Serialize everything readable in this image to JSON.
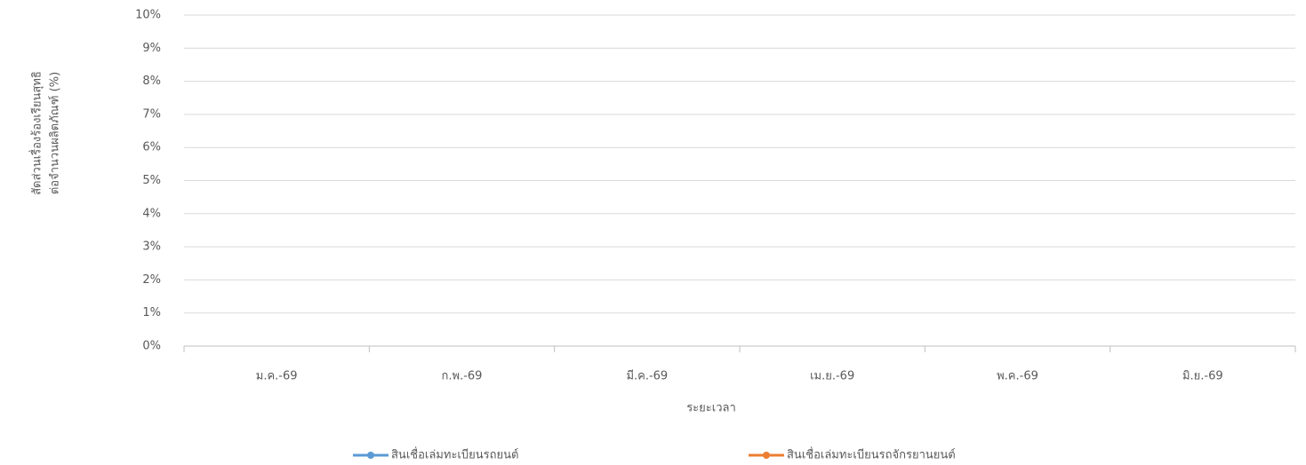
{
  "chart_data": {
    "type": "line",
    "y_label": [
      "สัดส่วนเรื่องร้องเรียนสุทธิ",
      "ต่อจำนวนผลิตภัณฑ์ (%)"
    ],
    "x_label": "ระยะเวลา",
    "categories": [
      "ม.ค.-69",
      "ก.พ.-69",
      "มี.ค.-69",
      "เม.ย.-69",
      "พ.ค.-69",
      "มิ.ย.-69"
    ],
    "series": [
      {
        "name": "สินเชื่อเล่มทะเบียนรถยนต์",
        "color": "#5b9bd5",
        "values": [
          null,
          null,
          null,
          null,
          null,
          null
        ]
      },
      {
        "name": "สินเชื่อเล่มทะเบียนรถจักรยานยนต์",
        "color": "#ed7d31",
        "values": [
          null,
          null,
          null,
          null,
          null,
          null
        ]
      }
    ],
    "ylim": [
      0,
      10
    ],
    "yticks": [
      {
        "value": 0,
        "label": "0%"
      },
      {
        "value": 1,
        "label": "1%"
      },
      {
        "value": 2,
        "label": "2%"
      },
      {
        "value": 3,
        "label": "3%"
      },
      {
        "value": 4,
        "label": "4%"
      },
      {
        "value": 5,
        "label": "5%"
      },
      {
        "value": 6,
        "label": "6%"
      },
      {
        "value": 7,
        "label": "7%"
      },
      {
        "value": 8,
        "label": "8%"
      },
      {
        "value": 9,
        "label": "9%"
      },
      {
        "value": 10,
        "label": "10%"
      }
    ],
    "grid": true,
    "legend": "bottom"
  }
}
